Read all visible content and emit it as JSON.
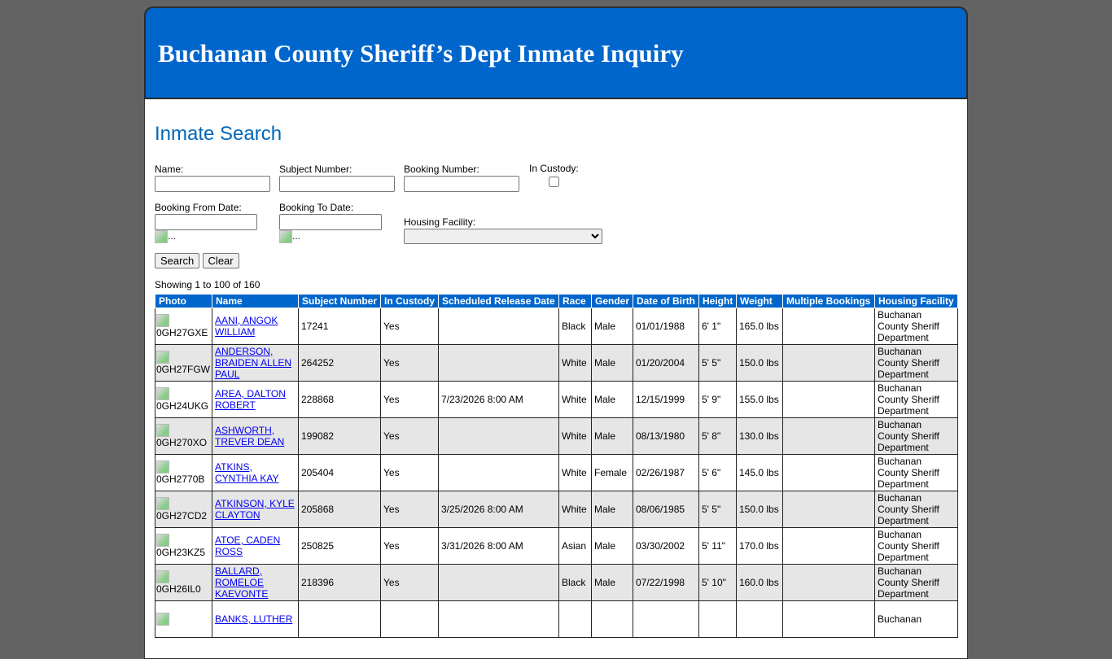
{
  "header": {
    "title": "Buchanan County Sheriff’s Dept Inmate Inquiry"
  },
  "page_title": "Inmate Search",
  "form": {
    "name_label": "Name:",
    "name_value": "",
    "subject_label": "Subject Number:",
    "subject_value": "",
    "booking_label": "Booking Number:",
    "booking_value": "",
    "custody_label": "In Custody:",
    "custody_checked": false,
    "from_label": "Booking From Date:",
    "from_value": "",
    "to_label": "Booking To Date:",
    "to_value": "",
    "calendar_alt": "...",
    "facility_label": "Housing Facility:",
    "facility_value": "",
    "search_label": "Search",
    "clear_label": "Clear"
  },
  "showing": "Showing 1 to 100 of 160",
  "colors": {
    "header_bg": "#0066cc",
    "title_color": "#0066b8",
    "alt_row": "#e6e6e6"
  },
  "table": {
    "columns": [
      "Photo",
      "Name",
      "Subject Number",
      "In Custody",
      "Scheduled Release Date",
      "Race",
      "Gender",
      "Date of Birth",
      "Height",
      "Weight",
      "Multiple Bookings",
      "Housing Facility"
    ],
    "rows": [
      {
        "photo": "0GH27GXE",
        "name": "AANI, ANGOK WILLIAM",
        "subject": "17241",
        "custody": "Yes",
        "release": "",
        "race": "Black",
        "gender": "Male",
        "dob": "01/01/1988",
        "height": "6' 1\"",
        "weight": "165.0 lbs",
        "multiple": "",
        "facility": "Buchanan County Sheriff Department"
      },
      {
        "photo": "0GH27FGW",
        "name": "ANDERSON, BRAIDEN ALLEN PAUL",
        "subject": "264252",
        "custody": "Yes",
        "release": "",
        "race": "White",
        "gender": "Male",
        "dob": "01/20/2004",
        "height": "5' 5\"",
        "weight": "150.0 lbs",
        "multiple": "",
        "facility": "Buchanan County Sheriff Department"
      },
      {
        "photo": "0GH24UKG",
        "name": "AREA, DALTON ROBERT",
        "subject": "228868",
        "custody": "Yes",
        "release": "7/23/2026 8:00 AM",
        "race": "White",
        "gender": "Male",
        "dob": "12/15/1999",
        "height": "5' 9\"",
        "weight": "155.0 lbs",
        "multiple": "",
        "facility": "Buchanan County Sheriff Department"
      },
      {
        "photo": "0GH270XO",
        "name": "ASHWORTH, TREVER DEAN",
        "subject": "199082",
        "custody": "Yes",
        "release": "",
        "race": "White",
        "gender": "Male",
        "dob": "08/13/1980",
        "height": "5' 8\"",
        "weight": "130.0 lbs",
        "multiple": "",
        "facility": "Buchanan County Sheriff Department"
      },
      {
        "photo": "0GH2770B",
        "name": "ATKINS, CYNTHIA KAY",
        "subject": "205404",
        "custody": "Yes",
        "release": "",
        "race": "White",
        "gender": "Female",
        "dob": "02/26/1987",
        "height": "5' 6\"",
        "weight": "145.0 lbs",
        "multiple": "",
        "facility": "Buchanan County Sheriff Department"
      },
      {
        "photo": "0GH27CD2",
        "name": "ATKINSON, KYLE CLAYTON",
        "subject": "205868",
        "custody": "Yes",
        "release": "3/25/2026 8:00 AM",
        "race": "White",
        "gender": "Male",
        "dob": "08/06/1985",
        "height": "5' 5\"",
        "weight": "150.0 lbs",
        "multiple": "",
        "facility": "Buchanan County Sheriff Department"
      },
      {
        "photo": "0GH23KZ5",
        "name": "ATOE, CADEN ROSS",
        "subject": "250825",
        "custody": "Yes",
        "release": "3/31/2026 8:00 AM",
        "race": "Asian",
        "gender": "Male",
        "dob": "03/30/2002",
        "height": "5' 11\"",
        "weight": "170.0 lbs",
        "multiple": "",
        "facility": "Buchanan County Sheriff Department"
      },
      {
        "photo": "0GH26IL0",
        "name": "BALLARD, ROMELOE KAEVONTE",
        "subject": "218396",
        "custody": "Yes",
        "release": "",
        "race": "Black",
        "gender": "Male",
        "dob": "07/22/1998",
        "height": "5' 10\"",
        "weight": "160.0 lbs",
        "multiple": "",
        "facility": "Buchanan County Sheriff Department"
      },
      {
        "photo": "",
        "name": "BANKS, LUTHER",
        "subject": "",
        "custody": "",
        "release": "",
        "race": "",
        "gender": "",
        "dob": "",
        "height": "",
        "weight": "",
        "multiple": "",
        "facility": "Buchanan"
      }
    ]
  }
}
